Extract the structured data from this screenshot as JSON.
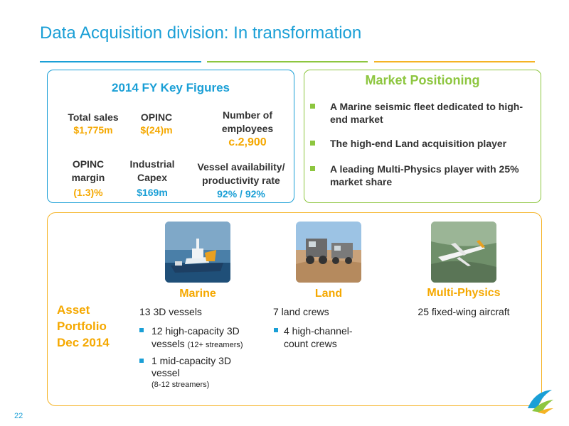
{
  "slide": {
    "title": "Data Acquisition division: In transformation",
    "page_number": "22"
  },
  "key_figures": {
    "title": "2014 FY Key Figures",
    "total_sales_label": "Total sales",
    "total_sales_value": "$1,775m",
    "opinc_label": "OPINC",
    "opinc_value": "$(24)m",
    "employees_label_1": "Number of",
    "employees_label_2": "employees",
    "employees_value": "c.2,900",
    "opinc_margin_label_1": "OPINC",
    "opinc_margin_label_2": "margin",
    "opinc_margin_value": "(1.3)%",
    "capex_label_1": "Industrial",
    "capex_label_2": "Capex",
    "capex_value": "$169m",
    "vessel_label_1": "Vessel availability/",
    "vessel_label_2": "productivity rate",
    "vessel_value": "92% / 92%"
  },
  "market_positioning": {
    "title": "Market Positioning",
    "bullets": [
      "A Marine seismic fleet dedicated to high-end market",
      "The high-end Land acquisition player",
      "A leading Multi-Physics player with 25% market share"
    ]
  },
  "asset_portfolio": {
    "heading_1": "Asset",
    "heading_2": "Portfolio",
    "heading_3": "Dec 2014",
    "marine": {
      "title": "Marine",
      "summary": "13 3D vessels",
      "b1_line1": "12 high-capacity 3D",
      "b1_line2": "vessels",
      "b1_note": "(12+ streamers)",
      "b2_line1": "1 mid-capacity 3D",
      "b2_line2": "vessel",
      "b2_note": "(8-12 streamers)"
    },
    "land": {
      "title": "Land",
      "summary": "7 land crews",
      "b1_line1": "4 high-channel-",
      "b1_line2": "count crews"
    },
    "multi_physics": {
      "title": "Multi-Physics",
      "summary": "25 fixed-wing aircraft"
    }
  },
  "colors": {
    "blue": "#1a9fd6",
    "green": "#8dc63f",
    "yellow": "#f5b324",
    "orange_text": "#f5a800"
  }
}
